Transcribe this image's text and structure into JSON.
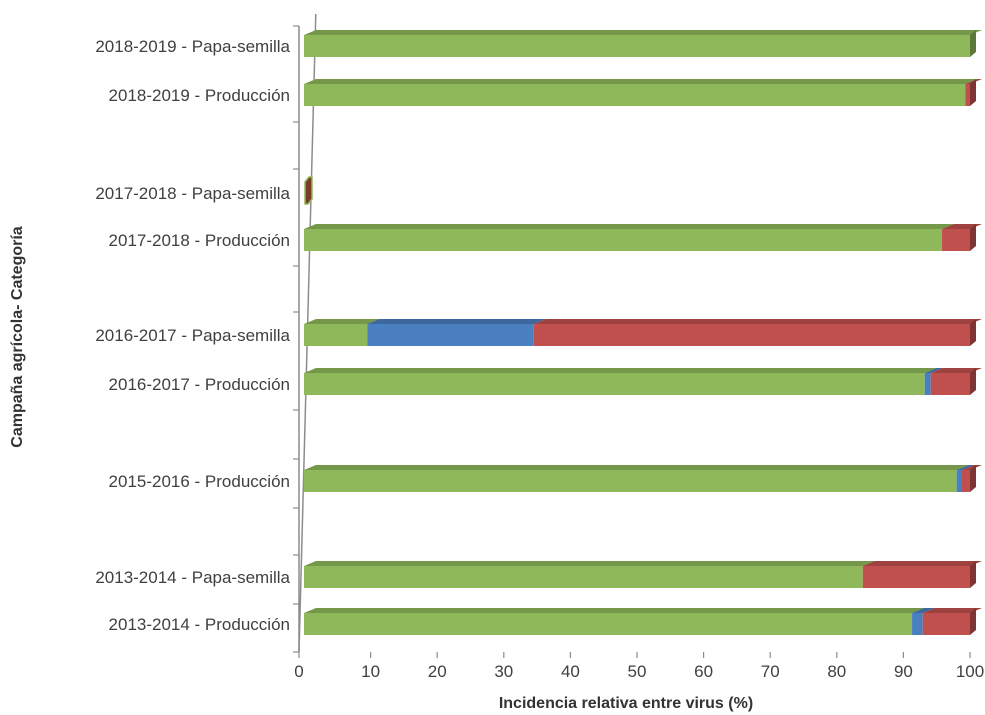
{
  "chart_data": {
    "type": "bar",
    "orientation": "horizontal",
    "stacked": true,
    "xlabel": "Incidencia relativa entre virus (%)",
    "ylabel": "Campaña agrícola- Categoría",
    "xlim": [
      0,
      100
    ],
    "xticks": [
      "0",
      "10",
      "20",
      "30",
      "40",
      "50",
      "60",
      "70",
      "80",
      "90",
      "100"
    ],
    "grid": false,
    "legend": "none",
    "categories": [
      "2018-2019 - Papa-semilla",
      "2018-2019  - Producción",
      "2017-2018 - Papa-semilla",
      "2017-2018 - Producción",
      "2016-2017 - Papa-semilla",
      "2016-2017 - Producción",
      "2015-2016 - Producción",
      "2013-2014 - Papa-semilla",
      "2013-2014 - Producción"
    ],
    "series": [
      {
        "color": "#8fb85a",
        "values": [
          100,
          99.3,
          0,
          95.8,
          9.5,
          93.2,
          98,
          83.9,
          91.3
        ]
      },
      {
        "color": "#4a7fc1",
        "values": [
          0,
          0,
          0,
          0,
          25,
          0.9,
          0.8,
          0,
          1.6
        ]
      },
      {
        "color": "#c0504d",
        "values": [
          0,
          0.7,
          0,
          4.2,
          65.5,
          5.9,
          1.2,
          16.1,
          7.1
        ]
      }
    ]
  }
}
